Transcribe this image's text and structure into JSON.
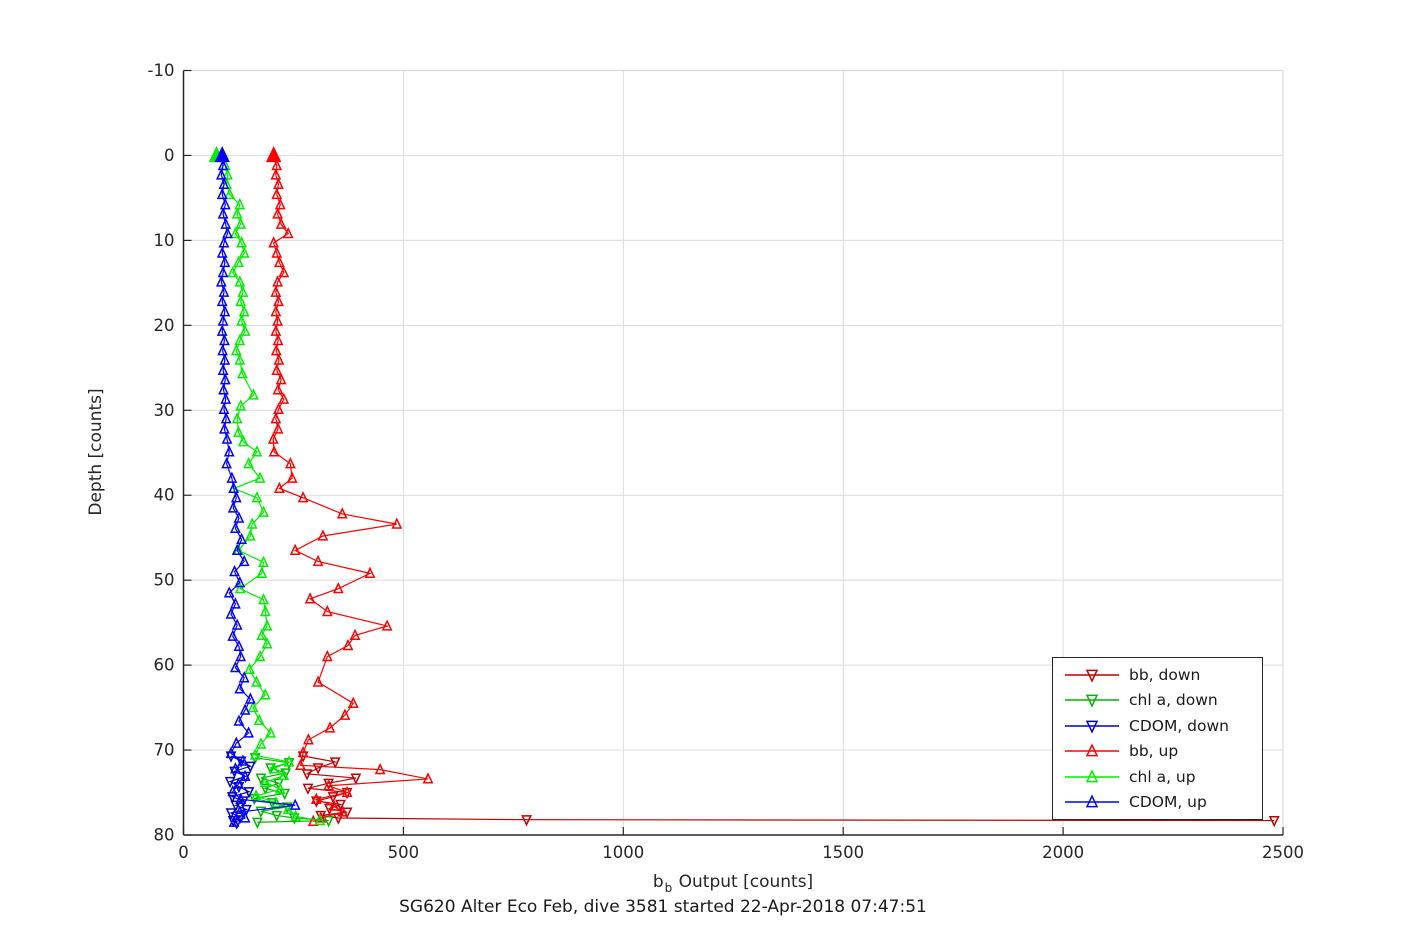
{
  "figure": {
    "subtitle": "SG620 Alter Eco Feb, dive 3581 started 22-Apr-2018 07:47:51",
    "background": "#ffffff"
  },
  "axes": {
    "ylabel": "Depth [counts]",
    "xlabel_base": "b",
    "xlabel_sub": "b",
    "xlabel_rest": " Output [counts]",
    "axis_color": "#262626",
    "grid_color": "#dcdcdc",
    "tick_label_color": "#262626",
    "x_ticks": [
      0,
      500,
      1000,
      1500,
      2000,
      2500
    ],
    "y_ticks": [
      -10,
      0,
      10,
      20,
      30,
      40,
      50,
      60,
      70,
      80
    ]
  },
  "legend": {
    "entries": [
      {
        "label": "bb, down"
      },
      {
        "label": "chl a, down"
      },
      {
        "label": "CDOM, down"
      },
      {
        "label": "bb, up"
      },
      {
        "label": "chl a, up"
      },
      {
        "label": "CDOM, up"
      }
    ]
  },
  "chart_data": {
    "type": "line",
    "title": "",
    "xlabel": "bb Output [counts]",
    "ylabel": "Depth [counts]",
    "xlim": [
      0,
      2500
    ],
    "ylim": [
      -10,
      80
    ],
    "y_axis_reversed_depth": true,
    "grid": true,
    "legend_position": "right-lower",
    "series": [
      {
        "name": "bb, down",
        "color": "#c00000",
        "marker": "down",
        "points": [
          [
            272,
            70.7
          ],
          [
            345,
            71.4
          ],
          [
            306,
            72.1
          ],
          [
            281,
            72.8
          ],
          [
            392,
            73.3
          ],
          [
            330,
            73.9
          ],
          [
            283,
            74.5
          ],
          [
            372,
            75.0
          ],
          [
            340,
            75.5
          ],
          [
            302,
            76.0
          ],
          [
            357,
            76.4
          ],
          [
            332,
            76.9
          ],
          [
            372,
            77.3
          ],
          [
            312,
            77.7
          ],
          [
            352,
            78.0
          ],
          [
            780,
            78.2
          ],
          [
            2480,
            78.3
          ]
        ]
      },
      {
        "name": "chl a, down",
        "color": "#00b400",
        "marker": "down",
        "points": [
          [
            163,
            70.9
          ],
          [
            240,
            71.5
          ],
          [
            198,
            72.1
          ],
          [
            232,
            72.7
          ],
          [
            176,
            73.3
          ],
          [
            216,
            73.9
          ],
          [
            186,
            74.5
          ],
          [
            230,
            75.1
          ],
          [
            161,
            75.7
          ],
          [
            202,
            76.2
          ],
          [
            236,
            76.7
          ],
          [
            176,
            77.2
          ],
          [
            212,
            77.7
          ],
          [
            252,
            78.0
          ],
          [
            330,
            78.3
          ],
          [
            168,
            78.5
          ]
        ]
      },
      {
        "name": "CDOM, down",
        "color": "#0000c8",
        "marker": "down",
        "points": [
          [
            108,
            70.7
          ],
          [
            131,
            71.3
          ],
          [
            152,
            71.9
          ],
          [
            116,
            72.5
          ],
          [
            141,
            73.1
          ],
          [
            106,
            73.7
          ],
          [
            126,
            74.3
          ],
          [
            149,
            74.9
          ],
          [
            111,
            75.5
          ],
          [
            136,
            76.0
          ],
          [
            119,
            76.5
          ],
          [
            143,
            77.0
          ],
          [
            108,
            77.4
          ],
          [
            129,
            77.9
          ],
          [
            113,
            78.3
          ],
          [
            121,
            78.6
          ]
        ]
      },
      {
        "name": "bb, up",
        "color": "#ff0000",
        "marker": "up",
        "points": [
          [
            205,
            0
          ],
          [
            212,
            1.2
          ],
          [
            210,
            2.3
          ],
          [
            216,
            3.4
          ],
          [
            212,
            4.6
          ],
          [
            220,
            5.8
          ],
          [
            214,
            6.9
          ],
          [
            222,
            8.1
          ],
          [
            238,
            9.2
          ],
          [
            205,
            10.3
          ],
          [
            212,
            11.5
          ],
          [
            218,
            12.6
          ],
          [
            228,
            13.8
          ],
          [
            214,
            14.9
          ],
          [
            210,
            16.1
          ],
          [
            216,
            17.2
          ],
          [
            210,
            18.4
          ],
          [
            214,
            19.5
          ],
          [
            210,
            20.7
          ],
          [
            215,
            21.8
          ],
          [
            211,
            23.0
          ],
          [
            217,
            24.1
          ],
          [
            212,
            25.3
          ],
          [
            222,
            26.4
          ],
          [
            215,
            27.6
          ],
          [
            228,
            28.7
          ],
          [
            216,
            29.9
          ],
          [
            210,
            31.0
          ],
          [
            215,
            32.2
          ],
          [
            204,
            33.4
          ],
          [
            206,
            34.9
          ],
          [
            243,
            36.3
          ],
          [
            247,
            38.0
          ],
          [
            218,
            39.2
          ],
          [
            272,
            40.3
          ],
          [
            361,
            42.2
          ],
          [
            485,
            43.4
          ],
          [
            317,
            44.8
          ],
          [
            254,
            46.5
          ],
          [
            306,
            47.8
          ],
          [
            424,
            49.2
          ],
          [
            352,
            51.0
          ],
          [
            288,
            52.2
          ],
          [
            327,
            53.7
          ],
          [
            463,
            55.4
          ],
          [
            390,
            56.5
          ],
          [
            374,
            57.7
          ],
          [
            327,
            59.0
          ],
          [
            306,
            62.0
          ],
          [
            386,
            64.5
          ],
          [
            367,
            65.9
          ],
          [
            333,
            67.4
          ],
          [
            284,
            68.8
          ],
          [
            272,
            70.3
          ],
          [
            266,
            71.8
          ],
          [
            447,
            72.3
          ],
          [
            556,
            73.4
          ],
          [
            330,
            74.2
          ],
          [
            372,
            75.0
          ],
          [
            302,
            75.8
          ],
          [
            342,
            76.6
          ],
          [
            362,
            77.3
          ],
          [
            312,
            78.0
          ],
          [
            295,
            78.4
          ]
        ]
      },
      {
        "name": "chl a, up",
        "color": "#00ee00",
        "marker": "up",
        "points": [
          [
            75,
            0
          ],
          [
            95,
            1.2
          ],
          [
            100,
            2.3
          ],
          [
            98,
            3.4
          ],
          [
            105,
            4.6
          ],
          [
            128,
            5.8
          ],
          [
            122,
            6.9
          ],
          [
            130,
            8.1
          ],
          [
            118,
            9.2
          ],
          [
            132,
            10.3
          ],
          [
            138,
            11.5
          ],
          [
            125,
            12.6
          ],
          [
            112,
            13.8
          ],
          [
            128,
            14.9
          ],
          [
            135,
            16.1
          ],
          [
            130,
            17.2
          ],
          [
            138,
            18.4
          ],
          [
            132,
            19.5
          ],
          [
            140,
            20.7
          ],
          [
            128,
            21.8
          ],
          [
            120,
            23.0
          ],
          [
            128,
            24.1
          ],
          [
            134,
            25.7
          ],
          [
            159,
            28.2
          ],
          [
            130,
            29.5
          ],
          [
            122,
            31.0
          ],
          [
            125,
            32.6
          ],
          [
            136,
            33.7
          ],
          [
            167,
            34.9
          ],
          [
            148,
            36.3
          ],
          [
            174,
            38.0
          ],
          [
            114,
            39.2
          ],
          [
            167,
            40.3
          ],
          [
            182,
            42.0
          ],
          [
            156,
            43.4
          ],
          [
            152,
            44.8
          ],
          [
            125,
            46.5
          ],
          [
            182,
            47.9
          ],
          [
            178,
            49.2
          ],
          [
            129,
            51.0
          ],
          [
            182,
            52.3
          ],
          [
            186,
            53.7
          ],
          [
            190,
            55.4
          ],
          [
            178,
            56.5
          ],
          [
            190,
            57.5
          ],
          [
            174,
            59.0
          ],
          [
            150,
            60.5
          ],
          [
            166,
            62.0
          ],
          [
            186,
            63.5
          ],
          [
            158,
            65.0
          ],
          [
            172,
            66.5
          ],
          [
            198,
            68.0
          ],
          [
            176,
            69.3
          ],
          [
            163,
            70.6
          ],
          [
            240,
            71.4
          ],
          [
            205,
            72.2
          ],
          [
            228,
            73.0
          ],
          [
            186,
            73.8
          ],
          [
            220,
            74.6
          ],
          [
            165,
            75.4
          ],
          [
            210,
            76.2
          ],
          [
            238,
            77.0
          ],
          [
            255,
            77.8
          ],
          [
            310,
            78.3
          ]
        ]
      },
      {
        "name": "CDOM, up",
        "color": "#0000ff",
        "marker": "up",
        "points": [
          [
            88,
            0
          ],
          [
            90,
            1.2
          ],
          [
            86,
            2.3
          ],
          [
            92,
            3.4
          ],
          [
            88,
            4.6
          ],
          [
            95,
            5.8
          ],
          [
            90,
            6.9
          ],
          [
            96,
            8.1
          ],
          [
            100,
            9.2
          ],
          [
            92,
            10.3
          ],
          [
            88,
            11.5
          ],
          [
            94,
            12.6
          ],
          [
            90,
            13.8
          ],
          [
            86,
            14.9
          ],
          [
            92,
            16.1
          ],
          [
            88,
            17.2
          ],
          [
            94,
            18.4
          ],
          [
            90,
            19.5
          ],
          [
            88,
            20.7
          ],
          [
            93,
            21.8
          ],
          [
            89,
            23.0
          ],
          [
            94,
            24.1
          ],
          [
            90,
            25.3
          ],
          [
            95,
            26.4
          ],
          [
            91,
            27.6
          ],
          [
            96,
            28.7
          ],
          [
            92,
            29.9
          ],
          [
            97,
            31.0
          ],
          [
            93,
            32.2
          ],
          [
            99,
            33.4
          ],
          [
            104,
            34.9
          ],
          [
            98,
            36.3
          ],
          [
            110,
            38.0
          ],
          [
            114,
            39.2
          ],
          [
            120,
            40.3
          ],
          [
            113,
            41.5
          ],
          [
            126,
            42.7
          ],
          [
            118,
            43.9
          ],
          [
            132,
            45.2
          ],
          [
            122,
            46.5
          ],
          [
            138,
            47.8
          ],
          [
            116,
            49.0
          ],
          [
            128,
            50.3
          ],
          [
            104,
            51.5
          ],
          [
            118,
            52.8
          ],
          [
            108,
            54.0
          ],
          [
            122,
            55.3
          ],
          [
            112,
            56.6
          ],
          [
            126,
            57.8
          ],
          [
            130,
            59.0
          ],
          [
            118,
            60.3
          ],
          [
            138,
            61.5
          ],
          [
            128,
            62.8
          ],
          [
            152,
            64.0
          ],
          [
            140,
            65.3
          ],
          [
            126,
            66.6
          ],
          [
            148,
            68.0
          ],
          [
            120,
            69.2
          ],
          [
            108,
            70.4
          ],
          [
            135,
            71.3
          ],
          [
            118,
            72.2
          ],
          [
            140,
            73.1
          ],
          [
            125,
            74.0
          ],
          [
            112,
            74.9
          ],
          [
            130,
            75.8
          ],
          [
            254,
            76.5
          ],
          [
            128,
            77.3
          ],
          [
            140,
            78.0
          ],
          [
            115,
            78.5
          ]
        ]
      }
    ]
  }
}
